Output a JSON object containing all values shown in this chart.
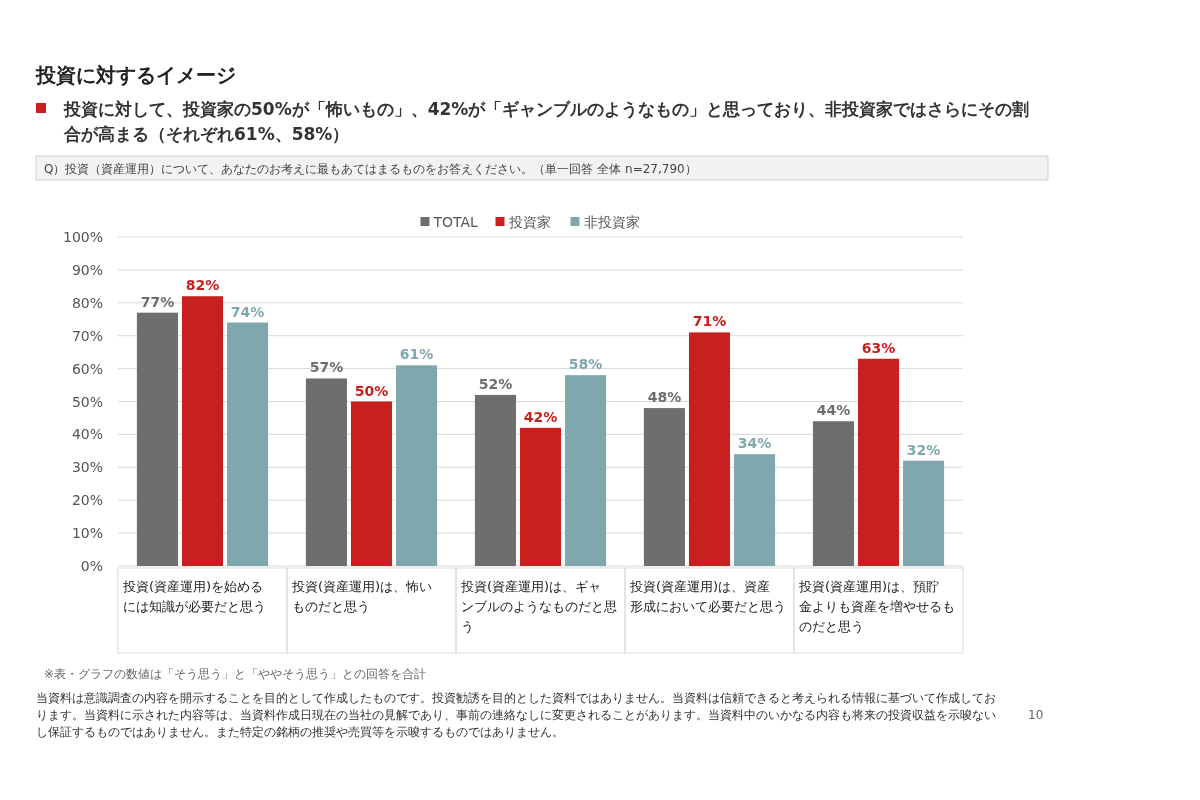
{
  "chart_data": {
    "type": "bar",
    "title": "投資に対するイメージ",
    "subtitle": "投資に対して、投資家の50%が「怖いもの」、42%が「ギャンブルのようなもの」と思っており、非投資家ではさらにその割合が高まる（それぞれ61%、58%）",
    "categories": [
      "投資(資産運用)を始めるには知識が必要だと思う",
      "投資(資産運用)は、怖いものだと思う",
      "投資(資産運用)は、ギャンブルのようなものだと思う",
      "投資(資産運用)は、資産形成において必要だと思う",
      "投資(資産運用)は、預貯金よりも資産を増やせるものだと思う"
    ],
    "series": [
      {
        "name": "TOTAL",
        "color": "#6e6e6e",
        "values": [
          77,
          57,
          52,
          48,
          44
        ],
        "value_labels": [
          "77%",
          "57%",
          "52%",
          "48%",
          "44%"
        ]
      },
      {
        "name": "投資家",
        "color": "#c8201e",
        "values": [
          82,
          50,
          42,
          71,
          63
        ],
        "value_labels": [
          "82%",
          "50%",
          "42%",
          "71%",
          "63%"
        ]
      },
      {
        "name": "非投資家",
        "color": "#7fa8ae",
        "values": [
          74,
          61,
          58,
          34,
          32
        ],
        "value_labels": [
          "74%",
          "61%",
          "58%",
          "34%",
          "32%"
        ]
      }
    ],
    "ylim": [
      0,
      100
    ],
    "yticks": [
      {
        "value": 0,
        "label": "0%"
      },
      {
        "value": 10,
        "label": "10%"
      },
      {
        "value": 20,
        "label": "20%"
      },
      {
        "value": 30,
        "label": "30%"
      },
      {
        "value": 40,
        "label": "40%"
      },
      {
        "value": 50,
        "label": "50%"
      },
      {
        "value": 60,
        "label": "60%"
      },
      {
        "value": 70,
        "label": "70%"
      },
      {
        "value": 80,
        "label": "80%"
      },
      {
        "value": 90,
        "label": "90%"
      },
      {
        "value": 100,
        "label": "100%"
      }
    ],
    "grid": "y",
    "legend": "top",
    "annotations": [
      "Q）投資（資産運用）について、あなたのお考えに最もあてはまるものをお答えください。（単一回答 全体 n=27,790）",
      "※表・グラフの数値は「そう思う」と「ややそう思う」との回答を合計",
      "当資料は意識調査の内容を開示することを目的として作成したものです。投資勧誘を目的とした資料ではありません。当資料は信頼できると考えられる情報に基づいて作成しております。当資料に示された内容等は、当資料作成日現在の当社の見解であり、事前の連絡なしに変更されることがあります。当資料中のいかなる内容も将来の投資収益を示唆ないし保証するものではありません。また特定の銘柄の推奨や売買等を示唆するものではありません。",
      "10"
    ]
  }
}
